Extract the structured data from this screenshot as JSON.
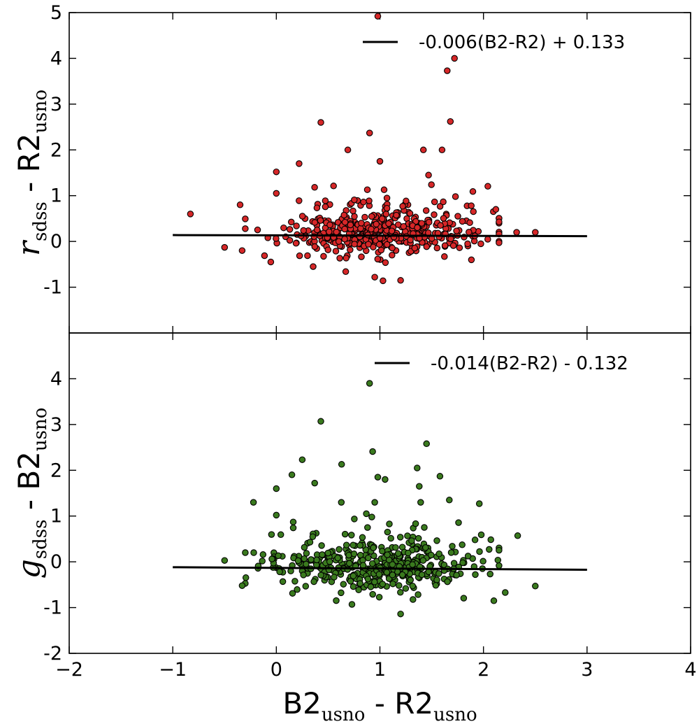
{
  "chart_data": [
    {
      "type": "scatter",
      "panel": "top",
      "ylabel_parts": {
        "main": "r",
        "sub": "sdss",
        "rest": " - R2",
        "rest_sub": "usno"
      },
      "xlim": [
        -2,
        4
      ],
      "ylim": [
        -2,
        5
      ],
      "xticks": [
        "−2",
        "−1",
        "0",
        "1",
        "2",
        "3",
        "4"
      ],
      "yticks": [
        "-1",
        "0",
        "1",
        "2",
        "3",
        "4",
        "5"
      ],
      "point_color": "#d62728",
      "point_edge": "#000000",
      "legend": "-0.006(B2-R2) + 0.133",
      "fit": {
        "slope": -0.006,
        "intercept": 0.133,
        "x_range": [
          -1,
          3
        ]
      },
      "outliers": [
        [
          0.98,
          4.92
        ],
        [
          1.72,
          4.0
        ],
        [
          1.65,
          3.73
        ],
        [
          1.68,
          2.62
        ],
        [
          0.43,
          2.6
        ],
        [
          0.9,
          2.37
        ],
        [
          0.69,
          2.0
        ],
        [
          1.42,
          2.0
        ],
        [
          1.6,
          2.0
        ],
        [
          0.22,
          1.7
        ],
        [
          -0.83,
          0.6
        ],
        [
          -0.35,
          0.8
        ],
        [
          -0.5,
          -0.13
        ],
        [
          -0.33,
          -0.2
        ],
        [
          2.5,
          0.2
        ],
        [
          2.32,
          0.2
        ],
        [
          2.12,
          0.7
        ],
        [
          0.95,
          -0.78
        ],
        [
          1.2,
          -0.85
        ],
        [
          1.03,
          -0.86
        ],
        [
          0.67,
          -0.66
        ],
        [
          0.0,
          1.52
        ],
        [
          0.0,
          1.05
        ],
        [
          1.0,
          1.75
        ],
        [
          1.47,
          1.45
        ]
      ],
      "cloud": {
        "n": 440,
        "x_mean": 1.05,
        "x_sd": 0.5,
        "x_range": [
          -0.3,
          2.15
        ],
        "y_mean": 0.17,
        "y_sd": 0.23,
        "tail_frac": 0.14,
        "y_range": [
          -0.55,
          1.4
        ],
        "seed": 12345
      }
    },
    {
      "type": "scatter",
      "panel": "bottom",
      "ylabel_parts": {
        "main": "g",
        "sub": "sdss",
        "rest": " - B2",
        "rest_sub": "usno"
      },
      "xlabel_parts": {
        "a": "B2",
        "a_sub": "usno",
        "mid": " - R2",
        "b_sub": "usno"
      },
      "xlim": [
        -2,
        4
      ],
      "ylim": [
        -2,
        5
      ],
      "xticks": [
        "−2",
        "−1",
        "0",
        "1",
        "2",
        "3",
        "4"
      ],
      "yticks": [
        "-2",
        "-1",
        "0",
        "1",
        "2",
        "3",
        "4"
      ],
      "point_color": "#3a7a1e",
      "point_edge": "#000000",
      "legend": "-0.014(B2-R2) - 0.132",
      "fit": {
        "slope": -0.014,
        "intercept": -0.132,
        "x_range": [
          -1,
          3
        ]
      },
      "outliers": [
        [
          0.9,
          3.9
        ],
        [
          0.43,
          3.07
        ],
        [
          1.45,
          2.58
        ],
        [
          0.93,
          2.41
        ],
        [
          0.25,
          2.23
        ],
        [
          0.63,
          2.13
        ],
        [
          1.36,
          2.05
        ],
        [
          1.58,
          1.87
        ],
        [
          0.98,
          1.85
        ],
        [
          1.05,
          1.8
        ],
        [
          0.37,
          1.72
        ],
        [
          1.38,
          1.65
        ],
        [
          0.0,
          1.6
        ],
        [
          0.15,
          1.9
        ],
        [
          -0.5,
          0.03
        ],
        [
          -0.33,
          -0.52
        ],
        [
          2.33,
          0.57
        ],
        [
          2.5,
          -0.53
        ],
        [
          2.21,
          -0.67
        ],
        [
          1.2,
          -1.14
        ],
        [
          0.73,
          -0.93
        ],
        [
          2.1,
          -0.85
        ],
        [
          1.96,
          1.27
        ],
        [
          0.0,
          1.02
        ],
        [
          1.67,
          1.35
        ]
      ],
      "cloud": {
        "n": 440,
        "x_mean": 1.0,
        "x_sd": 0.5,
        "x_range": [
          -0.3,
          2.15
        ],
        "y_mean": -0.1,
        "y_sd": 0.27,
        "tail_frac": 0.12,
        "y_range": [
          -0.95,
          1.3
        ],
        "seed": 67890
      }
    }
  ]
}
